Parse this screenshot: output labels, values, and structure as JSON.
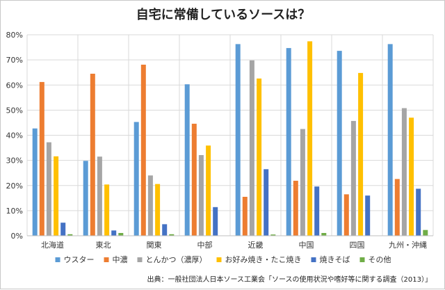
{
  "chart_data": {
    "type": "bar",
    "title": "自宅に常備しているソースは？",
    "categories": [
      "北海道",
      "東北",
      "関東",
      "中部",
      "近畿",
      "中国",
      "四国",
      "九州・沖縄"
    ],
    "ylim": [
      0,
      80
    ],
    "yticks": [
      "0%",
      "10%",
      "20%",
      "30%",
      "40%",
      "50%",
      "60%",
      "70%",
      "80%"
    ],
    "grid": true,
    "legend_position": "bottom",
    "series": [
      {
        "name": "ウスター",
        "color": "#5b9bd5",
        "values": [
          42.7,
          29.8,
          45.3,
          60.3,
          76.3,
          74.7,
          73.6,
          76.3
        ]
      },
      {
        "name": "中濃",
        "color": "#ed7d31",
        "values": [
          61.2,
          64.5,
          68.1,
          44.6,
          15.5,
          21.9,
          16.5,
          22.6
        ]
      },
      {
        "name": "とんかつ（濃厚）",
        "color": "#a5a5a5",
        "values": [
          37.2,
          31.5,
          24.0,
          32.1,
          69.8,
          42.5,
          45.7,
          50.8
        ]
      },
      {
        "name": "お好み焼き・たこ焼き",
        "color": "#ffc000",
        "values": [
          31.6,
          20.4,
          20.6,
          35.9,
          62.6,
          77.4,
          64.8,
          47.0
        ]
      },
      {
        "name": "焼きそば",
        "color": "#4472c4",
        "values": [
          5.2,
          2.1,
          4.6,
          11.4,
          26.5,
          19.6,
          16.0,
          18.7
        ]
      },
      {
        "name": "その他",
        "color": "#70ad47",
        "values": [
          0.6,
          1.1,
          0.6,
          0.0,
          0.5,
          1.1,
          0.0,
          2.3
        ]
      }
    ],
    "source": "出典：一般社団法人日本ソース工業会「ソースの使用状況や嗜好等に関する調査（2013）」"
  }
}
